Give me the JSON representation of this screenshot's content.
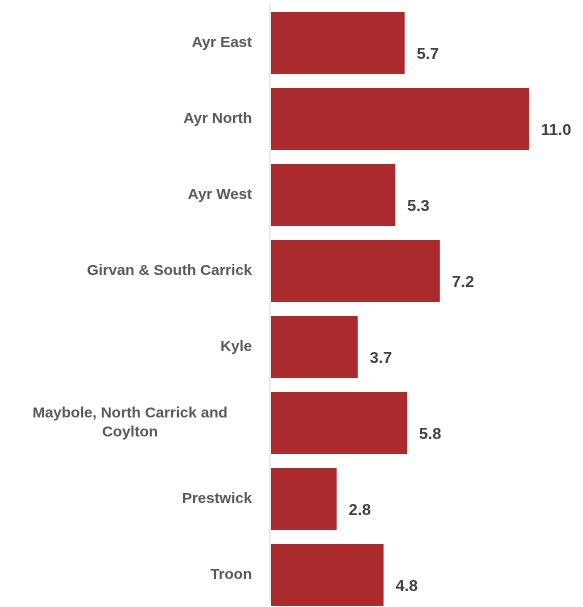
{
  "chart_data": {
    "type": "bar",
    "orientation": "horizontal",
    "categories": [
      "Ayr East",
      "Ayr North",
      "Ayr West",
      "Girvan & South Carrick",
      "Kyle",
      "Maybole, North Carrick and Coylton",
      "Prestwick",
      "Troon"
    ],
    "values": [
      5.7,
      11.0,
      5.3,
      7.2,
      3.7,
      5.8,
      2.8,
      4.8
    ],
    "value_labels": [
      "5.7",
      "11.0",
      "5.3",
      "7.2",
      "3.7",
      "5.8",
      "2.8",
      "4.8"
    ],
    "bar_color": "#ab2a2e",
    "xlim": [
      0,
      11.0
    ],
    "grid": false,
    "legend": "none"
  }
}
